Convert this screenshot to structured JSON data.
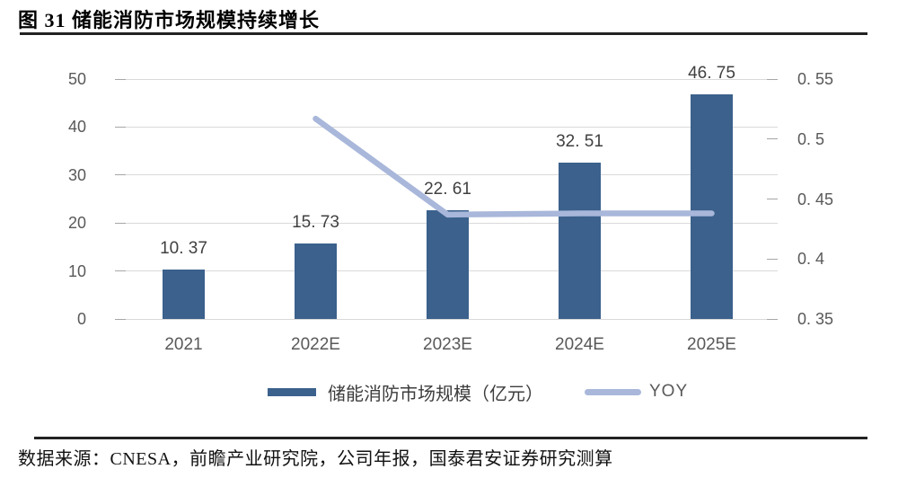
{
  "title": "图 31 储能消防市场规模持续增长",
  "source": "数据来源：CNESA，前瞻产业研究院，公司年报，国泰君安证券研究测算",
  "legend": {
    "bar_label": "储能消防市场规模（亿元）",
    "line_label": "YOY"
  },
  "colors": {
    "bar": "#3B618C",
    "line": "#A8B7DA",
    "grid": "#D9D9D9",
    "tick": "#A6A6A6",
    "axis_text": "#595959",
    "data_label": "#404040",
    "x_text": "#595959"
  },
  "chart_data": {
    "type": "bar+line combo",
    "title": "储能消防市场规模持续增长",
    "categories": [
      "2021",
      "2022E",
      "2023E",
      "2024E",
      "2025E"
    ],
    "series": [
      {
        "name": "储能消防市场规模（亿元）",
        "type": "bar",
        "axis": "left",
        "values": [
          10.37,
          15.73,
          22.61,
          32.51,
          46.75
        ],
        "value_labels": [
          "10. 37",
          "15. 73",
          "22. 61",
          "32. 51",
          "46. 75"
        ]
      },
      {
        "name": "YOY",
        "type": "line",
        "axis": "right",
        "points": [
          {
            "x": "2022E",
            "v": 0.517
          },
          {
            "x": "2023E",
            "v": 0.437
          },
          {
            "x": "2024E",
            "v": 0.438
          },
          {
            "x": "2025E",
            "v": 0.438
          }
        ]
      }
    ],
    "left_axis": {
      "min": 0,
      "max": 50,
      "ticks": [
        {
          "v": 0,
          "label": "0"
        },
        {
          "v": 10,
          "label": "10"
        },
        {
          "v": 20,
          "label": "20"
        },
        {
          "v": 30,
          "label": "30"
        },
        {
          "v": 40,
          "label": "40"
        },
        {
          "v": 50,
          "label": "50"
        }
      ]
    },
    "right_axis": {
      "min": 0.35,
      "max": 0.55,
      "ticks": [
        {
          "v": 0.35,
          "label": "0. 35"
        },
        {
          "v": 0.4,
          "label": "0. 4"
        },
        {
          "v": 0.45,
          "label": "0. 45"
        },
        {
          "v": 0.5,
          "label": "0. 5"
        },
        {
          "v": 0.55,
          "label": "0. 55"
        }
      ]
    },
    "grid": true,
    "legend_position": "bottom"
  }
}
